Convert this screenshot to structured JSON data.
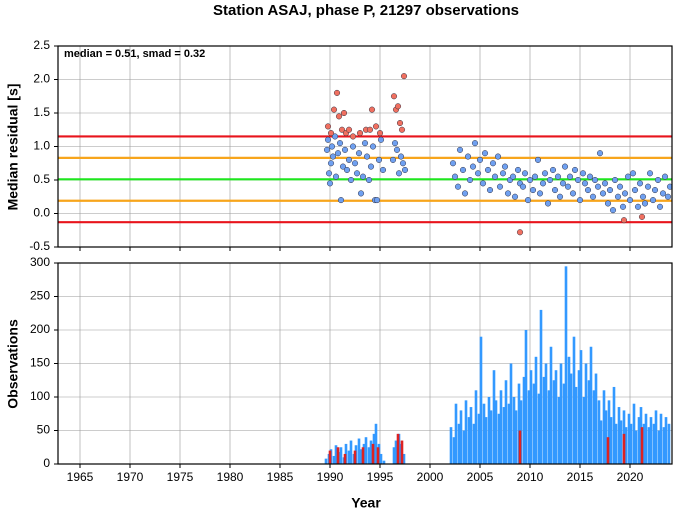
{
  "chart_data": [
    {
      "type": "scatter",
      "title": "Station ASAJ, phase P, 21297 observations",
      "y_label": "Median residual [s]",
      "annotation": "median = 0.51, smad = 0.32",
      "xlim": [
        1962.8,
        2024.2
      ],
      "ylim": [
        -0.5,
        2.5
      ],
      "xticks": [
        1965,
        1970,
        1975,
        1980,
        1985,
        1990,
        1995,
        2000,
        2005,
        2010,
        2015,
        2020
      ],
      "yticks": [
        {
          "value": -0.5,
          "label": "-0.5"
        },
        {
          "value": 0,
          "label": "0.0"
        },
        0.5,
        {
          "value": 1,
          "label": "1.0"
        },
        1.5,
        {
          "value": 2,
          "label": "2.0"
        },
        2.5
      ],
      "grid": true,
      "hlines": [
        {
          "value": 1.15,
          "color": "#e8141c"
        },
        {
          "value": 0.83,
          "color": "#f7a51c"
        },
        {
          "value": 0.51,
          "color": "#1ee61e"
        },
        {
          "value": 0.19,
          "color": "#f7a51c"
        },
        {
          "value": -0.13,
          "color": "#e8141c"
        }
      ],
      "series": [
        {
          "color": "#6fa0f0",
          "x": [
            1989.7,
            1989.8,
            1989.9,
            1990.0,
            1990.1,
            1990.2,
            1990.3,
            1990.5,
            1990.6,
            1990.8,
            1991.0,
            1991.1,
            1991.3,
            1991.5,
            1991.7,
            1991.9,
            1992.1,
            1992.3,
            1992.5,
            1992.7,
            1992.9,
            1993.1,
            1993.3,
            1993.5,
            1993.7,
            1993.9,
            1994.1,
            1994.3,
            1994.5,
            1994.7,
            1994.9,
            1995.1,
            1995.3,
            1996.3,
            1996.5,
            1996.7,
            1996.9,
            1997.1,
            1997.3,
            1997.5,
            2002.3,
            2002.5,
            2002.8,
            2003.0,
            2003.3,
            2003.5,
            2003.8,
            2004.0,
            2004.3,
            2004.5,
            2004.8,
            2005.0,
            2005.3,
            2005.5,
            2005.8,
            2006.0,
            2006.3,
            2006.5,
            2006.8,
            2007.0,
            2007.3,
            2007.5,
            2007.8,
            2008.0,
            2008.3,
            2008.5,
            2008.8,
            2009.0,
            2009.3,
            2009.5,
            2009.8,
            2010.0,
            2010.3,
            2010.5,
            2010.8,
            2011.0,
            2011.3,
            2011.5,
            2011.8,
            2012.0,
            2012.3,
            2012.5,
            2012.8,
            2013.0,
            2013.3,
            2013.5,
            2013.8,
            2014.0,
            2014.3,
            2014.5,
            2014.8,
            2015.0,
            2015.3,
            2015.5,
            2015.8,
            2016.0,
            2016.3,
            2016.5,
            2016.8,
            2017.0,
            2017.3,
            2017.5,
            2017.8,
            2018.0,
            2018.3,
            2018.5,
            2018.8,
            2019.0,
            2019.3,
            2019.5,
            2019.8,
            2020.0,
            2020.3,
            2020.5,
            2020.8,
            2021.0,
            2021.3,
            2021.5,
            2021.8,
            2022.0,
            2022.3,
            2022.5,
            2022.8,
            2023.0,
            2023.3,
            2023.5,
            2023.8,
            2024.0
          ],
          "values": [
            0.95,
            1.1,
            0.6,
            0.45,
            0.75,
            1.0,
            0.85,
            1.15,
            0.55,
            0.9,
            1.05,
            0.2,
            0.7,
            0.95,
            0.65,
            0.8,
            0.5,
            1.0,
            0.75,
            0.6,
            0.9,
            0.3,
            0.55,
            1.05,
            0.85,
            0.5,
            0.7,
            1.0,
            0.2,
            0.2,
            0.8,
            1.1,
            0.65,
            0.8,
            1.05,
            0.95,
            0.6,
            0.85,
            0.75,
            0.65,
            0.75,
            0.55,
            0.4,
            0.95,
            0.65,
            0.3,
            0.85,
            0.5,
            0.7,
            1.05,
            0.6,
            0.8,
            0.45,
            0.9,
            0.65,
            0.35,
            0.75,
            0.55,
            0.85,
            0.4,
            0.6,
            0.7,
            0.3,
            0.5,
            0.55,
            0.25,
            0.65,
            0.45,
            0.4,
            0.6,
            0.2,
            0.5,
            0.35,
            0.55,
            0.8,
            0.3,
            0.45,
            0.6,
            0.15,
            0.5,
            0.65,
            0.35,
            0.55,
            0.25,
            0.45,
            0.7,
            0.4,
            0.55,
            0.3,
            0.65,
            0.5,
            0.2,
            0.6,
            0.45,
            0.35,
            0.55,
            0.25,
            0.5,
            0.4,
            0.9,
            0.3,
            0.45,
            0.15,
            0.35,
            0.05,
            0.5,
            0.25,
            0.4,
            0.1,
            0.3,
            0.55,
            0.2,
            0.6,
            0.35,
            0.1,
            0.45,
            0.25,
            0.15,
            0.4,
            0.6,
            0.2,
            0.35,
            0.5,
            0.1,
            0.3,
            0.55,
            0.25,
            0.4
          ]
        },
        {
          "color": "#f07060",
          "x": [
            1989.8,
            1990.1,
            1990.4,
            1990.7,
            1990.9,
            1991.2,
            1991.4,
            1991.6,
            1991.9,
            1992.3,
            1993.0,
            1993.6,
            1994.0,
            1994.2,
            1994.6,
            1995.0,
            1996.4,
            1996.6,
            1996.8,
            1997.0,
            1997.2,
            1997.4,
            2009.0,
            2019.4,
            2021.2
          ],
          "values": [
            1.3,
            1.2,
            1.55,
            1.8,
            1.45,
            1.25,
            1.5,
            1.2,
            1.25,
            1.15,
            1.2,
            1.25,
            1.25,
            1.55,
            1.3,
            1.2,
            1.75,
            1.55,
            1.6,
            1.35,
            1.25,
            2.05,
            -0.28,
            -0.1,
            -0.05
          ]
        }
      ]
    },
    {
      "type": "bar",
      "x_label": "Year",
      "y_label": "Observations",
      "xlim": [
        1962.8,
        2024.2
      ],
      "ylim": [
        0,
        300
      ],
      "xticks": [
        1965,
        1970,
        1975,
        1980,
        1985,
        1990,
        1995,
        2000,
        2005,
        2010,
        2015,
        2020
      ],
      "yticks": [
        0,
        50,
        100,
        150,
        200,
        250,
        300
      ],
      "grid": true,
      "series": [
        {
          "color": "#3399ff",
          "x": [
            1989.6,
            1989.9,
            1990.1,
            1990.4,
            1990.6,
            1990.9,
            1991.1,
            1991.4,
            1991.6,
            1991.9,
            1992.1,
            1992.4,
            1992.6,
            1992.9,
            1993.1,
            1993.4,
            1993.6,
            1993.9,
            1994.1,
            1994.4,
            1994.6,
            1994.9,
            1995.1,
            1995.4,
            1996.4,
            1996.6,
            1996.9,
            1997.1,
            1997.4,
            2002.1,
            2002.4,
            2002.6,
            2002.9,
            2003.1,
            2003.4,
            2003.6,
            2003.9,
            2004.1,
            2004.4,
            2004.6,
            2004.9,
            2005.1,
            2005.4,
            2005.6,
            2005.9,
            2006.1,
            2006.4,
            2006.6,
            2006.9,
            2007.1,
            2007.4,
            2007.6,
            2007.9,
            2008.1,
            2008.4,
            2008.6,
            2008.9,
            2009.1,
            2009.4,
            2009.6,
            2009.9,
            2010.1,
            2010.4,
            2010.6,
            2010.9,
            2011.1,
            2011.4,
            2011.6,
            2011.9,
            2012.1,
            2012.4,
            2012.6,
            2012.9,
            2013.1,
            2013.4,
            2013.6,
            2013.9,
            2014.1,
            2014.4,
            2014.6,
            2014.9,
            2015.1,
            2015.4,
            2015.6,
            2015.9,
            2016.1,
            2016.4,
            2016.6,
            2016.9,
            2017.1,
            2017.4,
            2017.6,
            2017.9,
            2018.1,
            2018.4,
            2018.6,
            2018.9,
            2019.1,
            2019.4,
            2019.6,
            2019.9,
            2020.1,
            2020.4,
            2020.6,
            2020.9,
            2021.1,
            2021.4,
            2021.6,
            2021.9,
            2022.1,
            2022.4,
            2022.6,
            2022.9,
            2023.1,
            2023.4,
            2023.6,
            2023.9
          ],
          "values": [
            8,
            15,
            22,
            12,
            28,
            18,
            25,
            10,
            30,
            20,
            35,
            15,
            28,
            38,
            22,
            30,
            40,
            25,
            35,
            45,
            60,
            30,
            15,
            5,
            25,
            35,
            45,
            30,
            15,
            55,
            40,
            90,
            60,
            80,
            50,
            95,
            70,
            85,
            60,
            110,
            75,
            190,
            90,
            70,
            100,
            80,
            140,
            95,
            75,
            110,
            85,
            125,
            90,
            150,
            100,
            80,
            120,
            95,
            130,
            200,
            110,
            140,
            120,
            160,
            105,
            230,
            130,
            150,
            110,
            175,
            125,
            140,
            100,
            150,
            120,
            295,
            160,
            135,
            190,
            115,
            140,
            170,
            100,
            150,
            125,
            175,
            110,
            135,
            95,
            65,
            110,
            80,
            95,
            70,
            115,
            60,
            85,
            65,
            80,
            55,
            75,
            60,
            90,
            50,
            70,
            85,
            60,
            75,
            55,
            70,
            60,
            80,
            50,
            75,
            55,
            70,
            60
          ]
        },
        {
          "color": "#dd2222",
          "x": [
            1990.0,
            1990.8,
            1991.5,
            1992.5,
            1993.3,
            1994.3,
            1994.8,
            1996.8,
            1997.2,
            2009.0,
            2017.8,
            2019.4,
            2021.2
          ],
          "values": [
            20,
            25,
            15,
            20,
            25,
            30,
            25,
            45,
            35,
            50,
            40,
            45,
            55
          ]
        }
      ]
    }
  ]
}
